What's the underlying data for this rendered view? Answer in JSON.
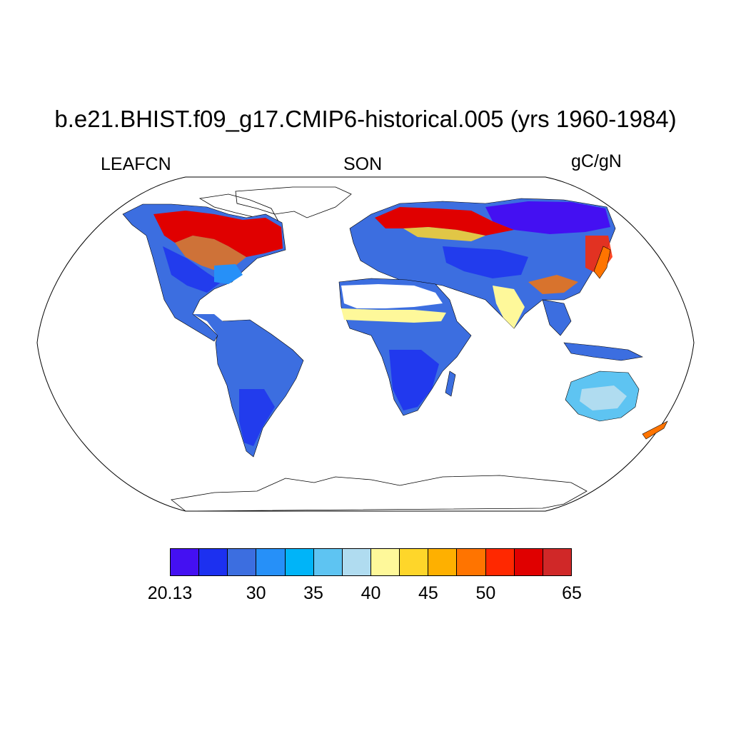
{
  "title": "b.e21.BHIST.f09_g17.CMIP6-historical.005 (yrs 1960-1984)",
  "left_label": "LEAFCN",
  "center_label": "SON",
  "right_label": "gC/gN",
  "colorbar": {
    "colors": [
      "#4410f2",
      "#1c30f0",
      "#3c6ee0",
      "#2690f8",
      "#00b4f8",
      "#5ec4f2",
      "#b0dcf0",
      "#fef89a",
      "#fed62a",
      "#feb000",
      "#ff7400",
      "#ff2800",
      "#e00000",
      "#d02828"
    ],
    "labels": [
      {
        "text": "20.13",
        "boundary": 0
      },
      {
        "text": "30",
        "boundary": 3
      },
      {
        "text": "35",
        "boundary": 5
      },
      {
        "text": "40",
        "boundary": 7
      },
      {
        "text": "45",
        "boundary": 9
      },
      {
        "text": "50",
        "boundary": 11
      },
      {
        "text": "65",
        "boundary": 14
      }
    ]
  }
}
